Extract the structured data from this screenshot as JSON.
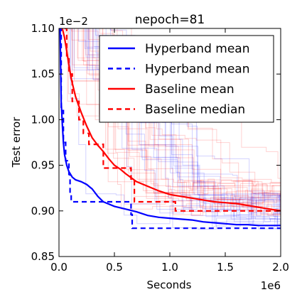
{
  "chart_data": {
    "type": "line",
    "title": "nepoch=81",
    "xlabel": "Seconds",
    "ylabel": "Test error",
    "x_multiplier": "1e6",
    "y_multiplier": "1e−2",
    "xlim": [
      0,
      2.0
    ],
    "ylim": [
      0.85,
      1.1
    ],
    "x_ticks": [
      "0.0",
      "0.5",
      "1.0",
      "1.5",
      "2.0"
    ],
    "y_ticks": [
      "0.85",
      "0.90",
      "0.95",
      "1.00",
      "1.05",
      "1.10"
    ],
    "x_tick_values": [
      0,
      0.5,
      1.0,
      1.5,
      2.0
    ],
    "y_tick_values": [
      0.85,
      0.9,
      0.95,
      1.0,
      1.05,
      1.1
    ],
    "legend_position": "top-right",
    "grid": false,
    "series": [
      {
        "name": "Hyperband mean",
        "color": "#0000ff",
        "style": "solid",
        "points": [
          [
            0.0,
            1.1
          ],
          [
            0.01,
            1.1
          ],
          [
            0.015,
            1.06
          ],
          [
            0.02,
            1.02
          ],
          [
            0.03,
            0.995
          ],
          [
            0.04,
            0.975
          ],
          [
            0.05,
            0.962
          ],
          [
            0.07,
            0.95
          ],
          [
            0.09,
            0.943
          ],
          [
            0.12,
            0.937
          ],
          [
            0.15,
            0.934
          ],
          [
            0.2,
            0.932
          ],
          [
            0.25,
            0.929
          ],
          [
            0.3,
            0.924
          ],
          [
            0.35,
            0.916
          ],
          [
            0.4,
            0.91
          ],
          [
            0.5,
            0.905
          ],
          [
            0.6,
            0.902
          ],
          [
            0.7,
            0.899
          ],
          [
            0.8,
            0.895
          ],
          [
            0.9,
            0.893
          ],
          [
            1.0,
            0.892
          ],
          [
            1.1,
            0.891
          ],
          [
            1.2,
            0.89
          ],
          [
            1.3,
            0.888
          ],
          [
            1.4,
            0.887
          ],
          [
            1.5,
            0.886
          ],
          [
            1.6,
            0.885
          ],
          [
            1.7,
            0.885
          ],
          [
            1.8,
            0.884
          ],
          [
            1.9,
            0.884
          ],
          [
            2.0,
            0.884
          ]
        ]
      },
      {
        "name": "Hyperband mean",
        "color": "#0000ff",
        "style": "dashed",
        "points": [
          [
            0.0,
            1.1
          ],
          [
            0.02,
            1.1
          ],
          [
            0.02,
            1.01
          ],
          [
            0.04,
            1.01
          ],
          [
            0.04,
            0.975
          ],
          [
            0.06,
            0.975
          ],
          [
            0.06,
            0.955
          ],
          [
            0.09,
            0.955
          ],
          [
            0.09,
            0.94
          ],
          [
            0.1,
            0.94
          ],
          [
            0.1,
            0.918
          ],
          [
            0.11,
            0.918
          ],
          [
            0.11,
            0.91
          ],
          [
            0.65,
            0.91
          ],
          [
            0.65,
            0.896
          ],
          [
            0.66,
            0.896
          ],
          [
            0.66,
            0.881
          ],
          [
            2.0,
            0.881
          ]
        ]
      },
      {
        "name": "Baseline mean",
        "color": "#ff0000",
        "style": "solid",
        "points": [
          [
            0.03,
            1.1
          ],
          [
            0.05,
            1.09
          ],
          [
            0.07,
            1.075
          ],
          [
            0.09,
            1.06
          ],
          [
            0.11,
            1.045
          ],
          [
            0.13,
            1.035
          ],
          [
            0.15,
            1.025
          ],
          [
            0.2,
            1.008
          ],
          [
            0.25,
            0.993
          ],
          [
            0.3,
            0.98
          ],
          [
            0.35,
            0.972
          ],
          [
            0.4,
            0.965
          ],
          [
            0.45,
            0.957
          ],
          [
            0.5,
            0.95
          ],
          [
            0.55,
            0.946
          ],
          [
            0.6,
            0.941
          ],
          [
            0.7,
            0.932
          ],
          [
            0.8,
            0.927
          ],
          [
            0.9,
            0.922
          ],
          [
            1.0,
            0.918
          ],
          [
            1.1,
            0.916
          ],
          [
            1.2,
            0.914
          ],
          [
            1.3,
            0.912
          ],
          [
            1.4,
            0.91
          ],
          [
            1.5,
            0.909
          ],
          [
            1.6,
            0.908
          ],
          [
            1.7,
            0.906
          ],
          [
            1.8,
            0.904
          ],
          [
            1.9,
            0.902
          ],
          [
            2.0,
            0.9
          ]
        ]
      },
      {
        "name": "Baseline median",
        "color": "#ff0000",
        "style": "dashed",
        "points": [
          [
            0.05,
            1.1
          ],
          [
            0.07,
            1.1
          ],
          [
            0.07,
            1.07
          ],
          [
            0.09,
            1.07
          ],
          [
            0.09,
            1.05
          ],
          [
            0.12,
            1.05
          ],
          [
            0.12,
            1.02
          ],
          [
            0.18,
            1.02
          ],
          [
            0.18,
            1.0
          ],
          [
            0.22,
            1.0
          ],
          [
            0.22,
            0.985
          ],
          [
            0.27,
            0.985
          ],
          [
            0.27,
            0.973
          ],
          [
            0.4,
            0.973
          ],
          [
            0.4,
            0.947
          ],
          [
            0.65,
            0.947
          ],
          [
            0.65,
            0.935
          ],
          [
            0.68,
            0.935
          ],
          [
            0.68,
            0.91
          ],
          [
            1.05,
            0.91
          ],
          [
            1.05,
            0.9
          ],
          [
            2.0,
            0.9
          ]
        ]
      }
    ]
  }
}
